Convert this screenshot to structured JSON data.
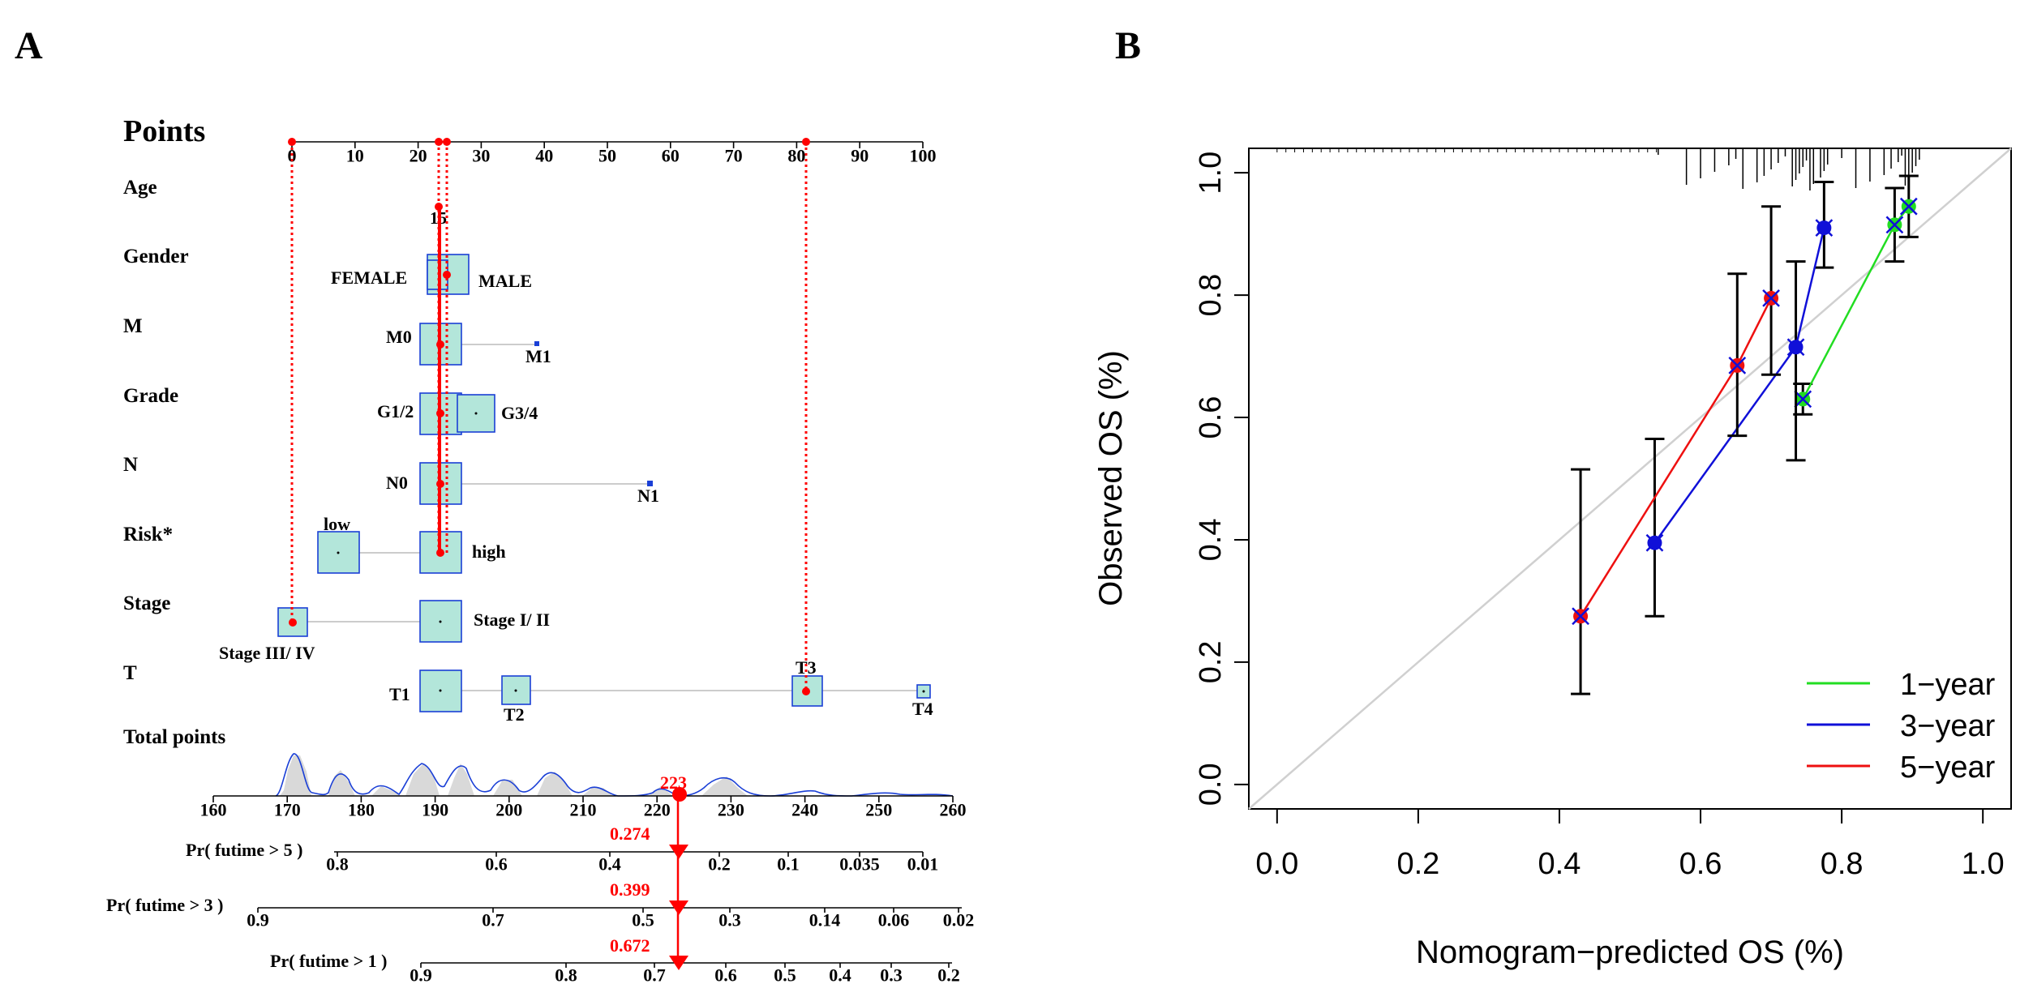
{
  "panel_a": {
    "label": "A",
    "points_title": "Points",
    "points_ticks": [
      "0",
      "10",
      "20",
      "30",
      "40",
      "50",
      "60",
      "70",
      "80",
      "90",
      "100"
    ],
    "variables": [
      "Age",
      "Gender",
      "M",
      "Grade",
      "N",
      "Risk*",
      "Stage",
      "T"
    ],
    "age_label": "15",
    "gender": [
      "FEMALE",
      "MALE"
    ],
    "m": [
      "M0",
      "M1"
    ],
    "grade": [
      "G1/2",
      "G3/4"
    ],
    "n": [
      "N0",
      "N1"
    ],
    "risk": [
      "low",
      "high"
    ],
    "stage": [
      "Stage III/ IV",
      "Stage I/ II"
    ],
    "t": [
      "T1",
      "T2",
      "T3",
      "T4"
    ],
    "total_points_label": "Total points",
    "total_ticks": [
      "160",
      "170",
      "180",
      "190",
      "200",
      "210",
      "220",
      "230",
      "240",
      "250",
      "260"
    ],
    "total_value": "223",
    "pr5_label": "Pr( futime > 5 )",
    "pr5_ticks": [
      "0.8",
      "0.6",
      "0.4",
      "0.2",
      "0.1",
      "0.035",
      "0.01"
    ],
    "pr5_value": "0.274",
    "pr3_label": "Pr( futime > 3 )",
    "pr3_ticks": [
      "0.9",
      "0.7",
      "0.5",
      "0.3",
      "0.14",
      "0.06",
      "0.02"
    ],
    "pr3_value": "0.399",
    "pr1_label": "Pr( futime > 1 )",
    "pr1_ticks": [
      "0.9",
      "0.8",
      "0.7",
      "0.6",
      "0.5",
      "0.4",
      "0.3",
      "0.2"
    ],
    "pr1_value": "0.672",
    "colors": {
      "marker": "#ff0000",
      "box_fill": "#b3e6da",
      "box_stroke": "#1a3fd6",
      "density": "#1a3fd6"
    }
  },
  "chart_data": {
    "type": "line",
    "panel_label": "B",
    "xlabel": "Nomogram−predicted OS (%)",
    "ylabel": "Observed OS (%)",
    "xlim": [
      -0.04,
      1.04
    ],
    "ylim": [
      -0.04,
      1.04
    ],
    "x_ticks": [
      "0.0",
      "0.2",
      "0.4",
      "0.6",
      "0.8",
      "1.0"
    ],
    "y_ticks": [
      "0.0",
      "0.2",
      "0.4",
      "0.6",
      "0.8",
      "1.0"
    ],
    "legend": {
      "position": "bottom-right"
    },
    "series": [
      {
        "name": "1−year",
        "color": "#22dd22",
        "x": [
          0.745,
          0.875,
          0.895
        ],
        "y": [
          0.63,
          0.915,
          0.945
        ],
        "err_low": [
          0.605,
          0.855,
          0.895
        ],
        "err_high": [
          0.655,
          0.975,
          0.995
        ]
      },
      {
        "name": "3−year",
        "color": "#1010d8",
        "x": [
          0.535,
          0.735,
          0.775
        ],
        "y": [
          0.395,
          0.715,
          0.91
        ],
        "err_low": [
          0.275,
          0.53,
          0.845
        ],
        "err_high": [
          0.565,
          0.855,
          0.985
        ]
      },
      {
        "name": "5−year",
        "color": "#ee1010",
        "x": [
          0.43,
          0.652,
          0.7
        ],
        "y": [
          0.275,
          0.685,
          0.795
        ],
        "err_low": [
          0.148,
          0.57,
          0.67
        ],
        "err_high": [
          0.515,
          0.835,
          0.945
        ]
      }
    ],
    "rug_x": [
      0.54,
      0.58,
      0.6,
      0.62,
      0.64,
      0.65,
      0.66,
      0.68,
      0.69,
      0.7,
      0.71,
      0.72,
      0.73,
      0.735,
      0.74,
      0.745,
      0.75,
      0.755,
      0.76,
      0.77,
      0.775,
      0.78,
      0.8,
      0.82,
      0.84,
      0.86,
      0.87,
      0.88,
      0.885,
      0.89,
      0.895,
      0.9,
      0.905,
      0.91
    ]
  }
}
